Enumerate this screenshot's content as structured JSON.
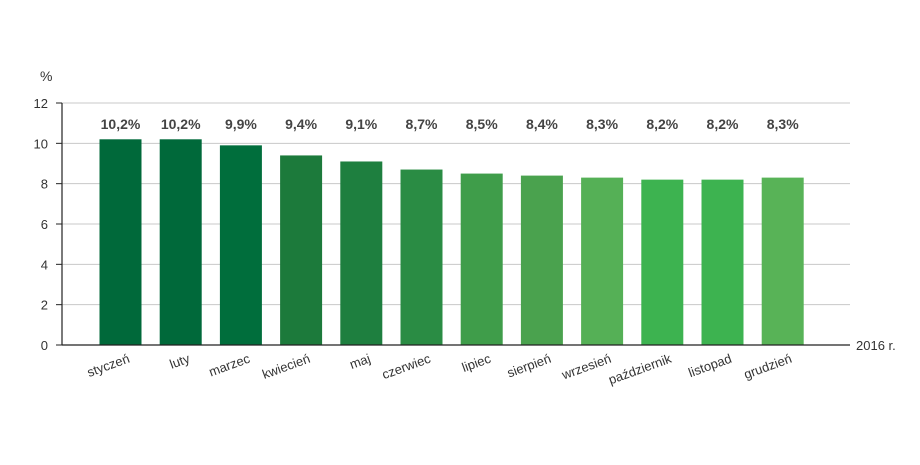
{
  "chart_data": {
    "type": "bar",
    "ylabel": "%",
    "xlabel": "2016 r.",
    "ylim": [
      0,
      12
    ],
    "yticks": [
      0,
      2,
      4,
      6,
      8,
      10,
      12
    ],
    "grid": true,
    "categories": [
      "styczeń",
      "luty",
      "marzec",
      "kwiecień",
      "maj",
      "czerwiec",
      "lipiec",
      "sierpień",
      "wrzesień",
      "październik",
      "listopad",
      "grudzień"
    ],
    "values": [
      10.2,
      10.2,
      9.9,
      9.4,
      9.1,
      8.7,
      8.5,
      8.4,
      8.3,
      8.2,
      8.2,
      8.3
    ],
    "data_labels": [
      "10,2%",
      "10,2%",
      "9,9%",
      "9,4%",
      "9,1%",
      "8,7%",
      "8,5%",
      "8,4%",
      "8,3%",
      "8,2%",
      "8,2%",
      "8,3%"
    ],
    "bar_colors": [
      "#00693a",
      "#00693a",
      "#006e3c",
      "#1c7a3b",
      "#1e7f3f",
      "#2a8c44",
      "#3f9d4a",
      "#4aa24e",
      "#55b056",
      "#3db350",
      "#3db350",
      "#58b357"
    ]
  }
}
